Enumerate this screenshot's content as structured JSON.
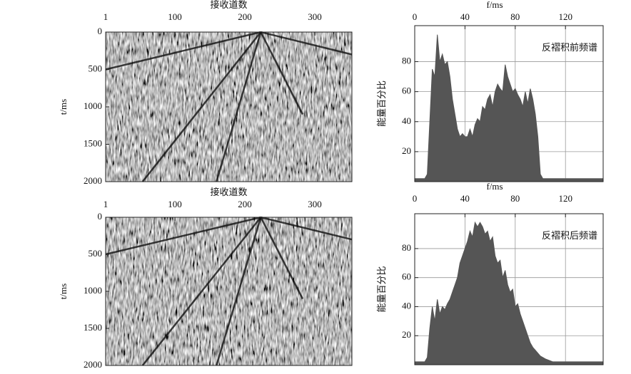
{
  "chart_data": [
    {
      "type": "image",
      "xlabel": "接收道数",
      "ylabel": "t/ms",
      "xlim": [
        1,
        353
      ],
      "ylim": [
        0,
        2000
      ],
      "invert_y": true,
      "xticks": [
        1,
        100,
        200,
        300
      ],
      "yticks": [
        0,
        500,
        1000,
        1500,
        2000
      ]
    },
    {
      "type": "area",
      "xlabel": "f/ms",
      "ylabel": "能量百分比",
      "annotation": "反褶积前频谱",
      "color": "#555555",
      "grid": true,
      "xlim": [
        0,
        150
      ],
      "ylim": [
        0,
        104
      ],
      "xticks": [
        0,
        40,
        80,
        120
      ],
      "yticks": [
        20,
        40,
        60,
        80
      ],
      "x": [
        0,
        4,
        8,
        10,
        12,
        14,
        16,
        18,
        20,
        22,
        24,
        26,
        28,
        30,
        32,
        34,
        36,
        38,
        40,
        42,
        44,
        46,
        48,
        50,
        52,
        54,
        56,
        58,
        60,
        62,
        64,
        66,
        68,
        70,
        72,
        74,
        76,
        78,
        80,
        82,
        84,
        86,
        88,
        90,
        92,
        94,
        96,
        98,
        100,
        102,
        110,
        150
      ],
      "values": [
        2,
        2,
        2,
        5,
        40,
        75,
        70,
        98,
        80,
        85,
        78,
        80,
        70,
        55,
        45,
        35,
        30,
        32,
        30,
        30,
        35,
        30,
        38,
        42,
        40,
        50,
        48,
        55,
        58,
        50,
        60,
        65,
        62,
        60,
        78,
        70,
        65,
        60,
        62,
        58,
        55,
        50,
        60,
        52,
        62,
        55,
        45,
        30,
        5,
        2,
        2,
        2
      ]
    },
    {
      "type": "image",
      "xlabel": "接收道数",
      "ylabel": "t/ms",
      "xlim": [
        1,
        353
      ],
      "ylim": [
        0,
        2000
      ],
      "invert_y": true,
      "xticks": [
        1,
        100,
        200,
        300
      ],
      "yticks": [
        0,
        500,
        1000,
        1500,
        2000
      ]
    },
    {
      "type": "area",
      "xlabel": "f/ms",
      "ylabel": "能量百分比",
      "annotation": "反褶积后频谱",
      "color": "#555555",
      "grid": true,
      "xlim": [
        0,
        150
      ],
      "ylim": [
        0,
        104
      ],
      "xticks": [
        0,
        40,
        80,
        120
      ],
      "yticks": [
        20,
        40,
        60,
        80
      ],
      "x": [
        0,
        4,
        8,
        10,
        12,
        14,
        16,
        18,
        20,
        22,
        24,
        26,
        28,
        30,
        32,
        34,
        36,
        38,
        40,
        42,
        44,
        46,
        48,
        50,
        52,
        54,
        56,
        58,
        60,
        62,
        64,
        66,
        68,
        70,
        72,
        74,
        76,
        78,
        80,
        82,
        84,
        86,
        88,
        90,
        92,
        94,
        96,
        98,
        100,
        104,
        110,
        150
      ],
      "values": [
        2,
        2,
        2,
        5,
        25,
        40,
        30,
        45,
        35,
        40,
        38,
        42,
        45,
        50,
        55,
        60,
        70,
        75,
        80,
        85,
        92,
        88,
        98,
        95,
        98,
        95,
        90,
        92,
        85,
        88,
        75,
        70,
        72,
        60,
        65,
        55,
        50,
        52,
        40,
        42,
        35,
        30,
        25,
        20,
        15,
        12,
        10,
        8,
        6,
        4,
        2,
        2
      ]
    }
  ]
}
